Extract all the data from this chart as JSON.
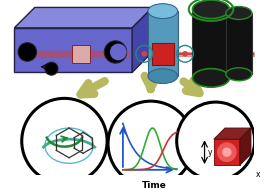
{
  "bg_color": "#ffffff",
  "beam_color": "#cc4444",
  "arrow_color": "#b8b860",
  "arrow_edge_color": "#909040",
  "box_face_color": "#6666cc",
  "box_edge_color": "#222244",
  "box_top_color": "#8888dd",
  "box_right_color": "#4444aa",
  "cylinder1_color": "#5599bb",
  "cylinder1_top": "#77bbdd",
  "cylinder2_color": "#111111",
  "cylinder2_edge": "#228822",
  "lens_edge_color": "#228888",
  "time_label": "Time",
  "xy_label_x": "x",
  "xy_label_y": "y",
  "line_colors_time": [
    "#2255cc",
    "#cc3333",
    "#33aa33"
  ],
  "circle_lw": 2.2
}
